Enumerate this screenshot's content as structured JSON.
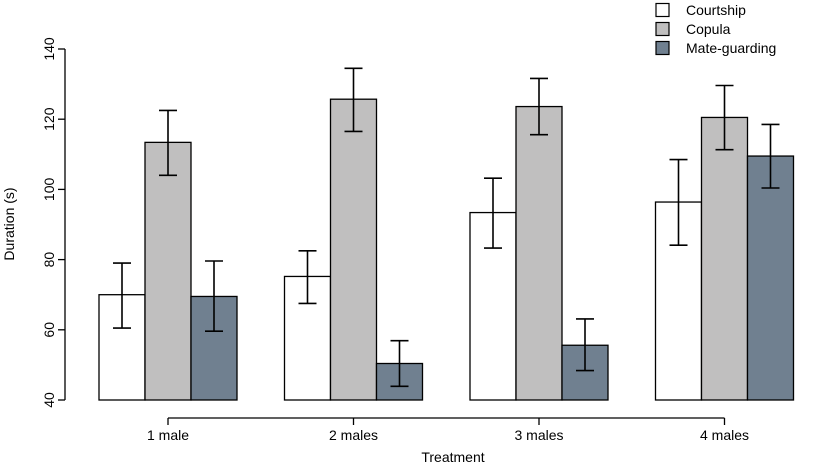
{
  "chart_data": {
    "type": "bar",
    "title": "",
    "xlabel": "Treatment",
    "ylabel": "Duration (s)",
    "ylim": [
      40,
      140
    ],
    "yticks": [
      40,
      60,
      80,
      100,
      120,
      140
    ],
    "categories": [
      "1 male",
      "2 males",
      "3 males",
      "4 males"
    ],
    "series": [
      {
        "name": "Courtship",
        "color": "#ffffff",
        "values": [
          70,
          75.2,
          93.4,
          96.4
        ],
        "error_low": [
          60.5,
          67.5,
          83.3,
          84.1
        ],
        "error_high": [
          79,
          82.5,
          103.2,
          108.5
        ]
      },
      {
        "name": "Copula",
        "color": "#c0bfbf",
        "values": [
          113.4,
          125.7,
          123.6,
          120.5
        ],
        "error_low": [
          104,
          116.5,
          115.6,
          111.3
        ],
        "error_high": [
          122.5,
          134.5,
          131.6,
          129.6
        ]
      },
      {
        "name": "Mate-guarding",
        "color": "#708090",
        "values": [
          69.5,
          50.4,
          55.6,
          109.5
        ],
        "error_low": [
          59.6,
          43.9,
          48.4,
          100.4
        ],
        "error_high": [
          79.6,
          56.9,
          63.1,
          118.5
        ]
      }
    ],
    "legend_position": "top-right",
    "grid": false
  }
}
